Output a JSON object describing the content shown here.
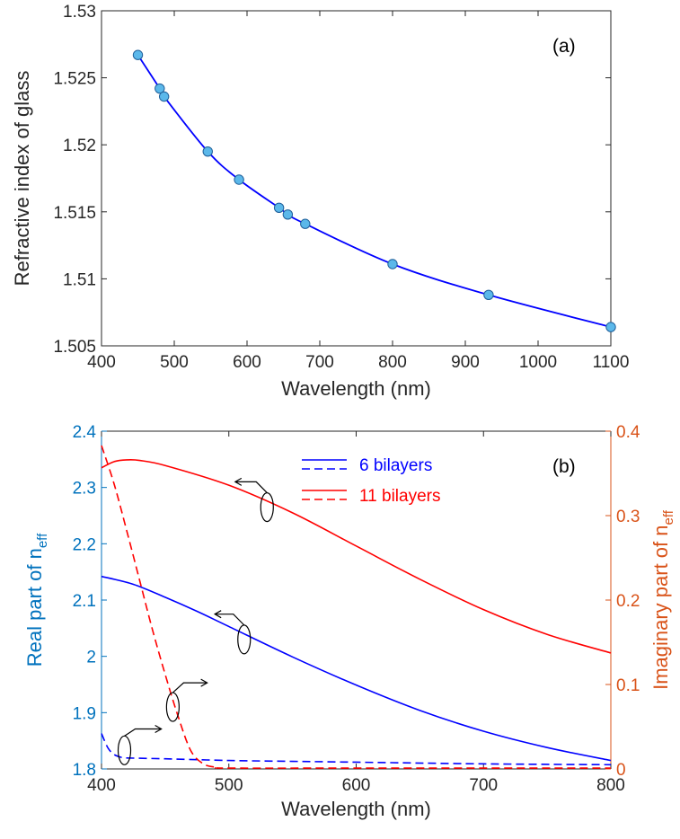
{
  "chart_data": [
    {
      "panel": "a",
      "type": "scatter",
      "panel_label": "(a)",
      "xlabel": "Wavelength (nm)",
      "ylabel": "Refractive index of glass",
      "xlim": [
        400,
        1100
      ],
      "ylim": [
        1.505,
        1.53
      ],
      "xticks": [
        "400",
        "500",
        "600",
        "700",
        "800",
        "900",
        "1000",
        "1100"
      ],
      "yticks": [
        "1.505",
        "1.51",
        "1.515",
        "1.52",
        "1.525",
        "1.53"
      ],
      "colors": {
        "line": "#0000ff",
        "marker_fill": "#5bb8ea",
        "marker_edge": "#1f5f99"
      },
      "series": [
        {
          "x": [
            450,
            480,
            486,
            546,
            589,
            644,
            656,
            680,
            800,
            932,
            1100
          ],
          "y": [
            1.5267,
            1.5242,
            1.5236,
            1.5195,
            1.5174,
            1.5153,
            1.5148,
            1.5141,
            1.5111,
            1.5088,
            1.5064
          ]
        }
      ]
    },
    {
      "panel": "b",
      "type": "line",
      "panel_label": "(b)",
      "xlabel": "Wavelength (nm)",
      "ylabel_left": "Real part of n",
      "ylabel_left_sub": "eff",
      "ylabel_right": "Imaginary part of n",
      "ylabel_right_sub": "eff",
      "xlim": [
        400,
        800
      ],
      "ylim_left": [
        1.8,
        2.4
      ],
      "ylim_right": [
        0,
        0.4
      ],
      "xticks": [
        "400",
        "500",
        "600",
        "700",
        "800"
      ],
      "yticks_left": [
        "1.8",
        "1.9",
        "2",
        "2.1",
        "2.2",
        "2.3",
        "2.4"
      ],
      "yticks_right": [
        "0",
        "0.1",
        "0.2",
        "0.3",
        "0.4"
      ],
      "colors": {
        "left_axis": "#0072bd",
        "right_axis": "#d95319",
        "blue": "#0000ff",
        "red": "#ff0000"
      },
      "legend": {
        "placement": "top-center",
        "entries": [
          "6 bilayers",
          "11 bilayers"
        ]
      },
      "series": [
        {
          "name": "6 bilayers",
          "part": "real",
          "axis": "left",
          "color": "#0000ff",
          "dash": false,
          "x": [
            400,
            425,
            450,
            475,
            500,
            550,
            600,
            650,
            700,
            750,
            800
          ],
          "y": [
            2.142,
            2.128,
            2.105,
            2.08,
            2.053,
            1.999,
            1.949,
            1.904,
            1.867,
            1.838,
            1.815
          ]
        },
        {
          "name": "6 bilayers",
          "part": "imag",
          "axis": "right",
          "color": "#0000ff",
          "dash": true,
          "x": [
            400,
            405,
            410,
            415,
            420,
            450,
            500,
            550,
            600,
            700,
            800
          ],
          "y": [
            0.042,
            0.025,
            0.017,
            0.014,
            0.013,
            0.012,
            0.01,
            0.009,
            0.008,
            0.006,
            0.005
          ]
        },
        {
          "name": "11 bilayers",
          "part": "real",
          "axis": "left",
          "color": "#ff0000",
          "dash": false,
          "x": [
            400,
            410,
            420,
            430,
            450,
            500,
            550,
            600,
            650,
            700,
            750,
            800
          ],
          "y": [
            2.335,
            2.346,
            2.349,
            2.348,
            2.339,
            2.304,
            2.255,
            2.196,
            2.137,
            2.083,
            2.039,
            2.006
          ]
        },
        {
          "name": "11 bilayers",
          "part": "imag",
          "axis": "right",
          "color": "#ff0000",
          "dash": true,
          "x": [
            400,
            410,
            420,
            430,
            440,
            450,
            460,
            470,
            480,
            490,
            500,
            600,
            700,
            800
          ],
          "y": [
            0.383,
            0.337,
            0.281,
            0.223,
            0.165,
            0.112,
            0.063,
            0.022,
            0.006,
            0.002,
            0.001,
            0.001,
            0.001,
            0.001
          ]
        }
      ],
      "annotations": [
        {
          "points_to": "11 bilayers",
          "part": "real",
          "axis": "left",
          "arrow": "left",
          "ellipse_at": [
            530,
            2.265
          ],
          "arrow_tip": [
            505,
            2.31
          ]
        },
        {
          "points_to": "6 bilayers",
          "part": "real",
          "axis": "left",
          "arrow": "left",
          "ellipse_at": [
            512,
            2.03
          ],
          "arrow_tip": [
            489,
            2.075
          ]
        },
        {
          "points_to": "11 bilayers",
          "part": "imag",
          "axis": "right",
          "arrow": "right",
          "ellipse_at": [
            456,
            1.91
          ],
          "arrow_tip": [
            483,
            1.953
          ]
        },
        {
          "points_to": "6 bilayers",
          "part": "imag",
          "axis": "right",
          "arrow": "right",
          "ellipse_at": [
            418,
            1.833
          ],
          "arrow_tip": [
            447,
            1.871
          ]
        }
      ]
    }
  ]
}
